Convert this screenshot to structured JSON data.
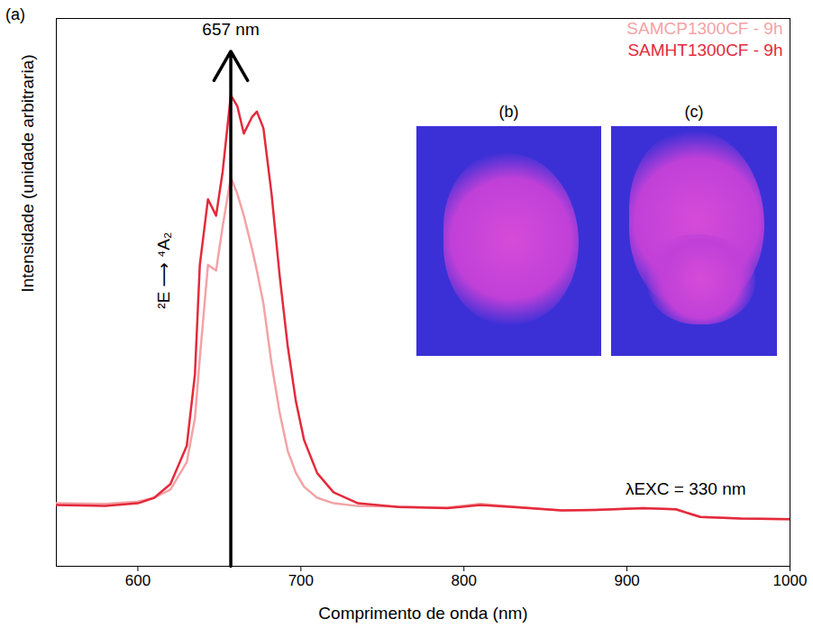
{
  "chart_data": {
    "type": "line",
    "panel": "(a)",
    "xlabel": "Comprimento de onda (nm)",
    "ylabel": "Intensidade (unidade arbitraria)",
    "x": [
      550,
      580,
      600,
      610,
      620,
      630,
      635,
      638,
      643,
      648,
      652,
      657,
      661,
      665,
      670,
      673,
      677,
      682,
      687,
      692,
      697,
      702,
      710,
      720,
      735,
      760,
      790,
      810,
      830,
      860,
      880,
      910,
      930,
      945,
      970,
      1000
    ],
    "series": [
      {
        "name": "SAMCP1300CF - 9h",
        "color": "#f4a3a6",
        "values": [
          11.5,
          11.4,
          11.8,
          12.5,
          14,
          19,
          27,
          38,
          55,
          54,
          62,
          71,
          68,
          64,
          58,
          54,
          48,
          37,
          28,
          21,
          17,
          14.5,
          12.5,
          11.5,
          11,
          10.9,
          10.7,
          11.4,
          10.9,
          10.2,
          10.3,
          10.6,
          10.4,
          9.0,
          8.7,
          8.6
        ]
      },
      {
        "name": "SAMHT1300CF - 9h",
        "color": "#e42a3c",
        "values": [
          11.2,
          11.0,
          11.5,
          12.5,
          15,
          22,
          35,
          55,
          67,
          64,
          72,
          86,
          84,
          79,
          82,
          83,
          80,
          68,
          53,
          40,
          30,
          23,
          17,
          13.5,
          11.5,
          10.8,
          10.6,
          11.2,
          10.8,
          10.2,
          10.3,
          10.6,
          10.4,
          9.0,
          8.7,
          8.6
        ]
      }
    ],
    "xlim": [
      550,
      1000
    ],
    "xticks": [
      600,
      700,
      800,
      900,
      1000
    ],
    "ylim": [
      0,
      100
    ],
    "yticks": [],
    "tick_labels": "x",
    "legend": "top-right",
    "annotations": [
      {
        "text": "657 nm",
        "x": 657,
        "y": 97,
        "arrow_y": [
          0,
          94
        ]
      },
      {
        "text": "²E ⟶ ⁴A₂",
        "x": 616,
        "y": 54
      },
      {
        "text": "λEXC = 330 nm",
        "x": 936,
        "y": 14
      }
    ],
    "insets": [
      "(b)",
      "(c)"
    ]
  }
}
